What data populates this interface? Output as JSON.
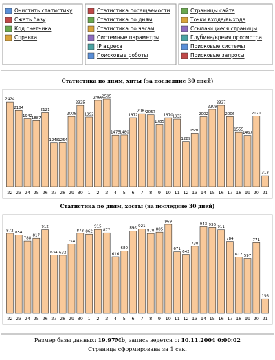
{
  "menu": [
    [
      "Очистить статистику",
      "Сжать базу",
      "Код счетчика",
      "Справка"
    ],
    [
      "Статистика посещаемости",
      "Статистика по дням",
      "Статистика по часам",
      "Системные параметры",
      "IP адреса",
      "Поисковые роботы"
    ],
    [
      "Страницы сайта",
      "Точки входа/выхода",
      "Ссылающиеся страницы",
      "Глубина/время просмотра",
      "Поисковые системы",
      "Поисковые запросы"
    ]
  ],
  "chart_data": [
    {
      "type": "bar",
      "title": "Статистика по дням, хиты (за последние 30 дней)",
      "categories": [
        "22",
        "23",
        "24",
        "25",
        "26",
        "27",
        "28",
        "29",
        "30",
        "1",
        "2",
        "3",
        "4",
        "5",
        "6",
        "7",
        "8",
        "9",
        "10",
        "11",
        "12",
        "13",
        "14",
        "15",
        "16",
        "17",
        "18",
        "19",
        "20",
        "21"
      ],
      "values": [
        2424,
        2184,
        1942,
        1887,
        2121,
        1248,
        1254,
        2008,
        2325,
        1992,
        2466,
        2505,
        1475,
        1480,
        1972,
        2087,
        2057,
        1785,
        1970,
        1932,
        1289,
        1530,
        2002,
        2209,
        2327,
        2006,
        1555,
        1467,
        2021,
        313
      ],
      "color": "#f9c99a"
    },
    {
      "type": "bar",
      "title": "Статистика по дням, хосты (за последние 30 дней)",
      "categories": [
        "22",
        "23",
        "24",
        "25",
        "26",
        "27",
        "28",
        "29",
        "30",
        "1",
        "2",
        "3",
        "4",
        "5",
        "6",
        "7",
        "8",
        "9",
        "10",
        "11",
        "12",
        "13",
        "14",
        "15",
        "16",
        "17",
        "18",
        "19",
        "20",
        "21"
      ],
      "values": [
        872,
        854,
        788,
        817,
        912,
        634,
        632,
        754,
        873,
        862,
        915,
        877,
        616,
        680,
        896,
        921,
        870,
        885,
        969,
        671,
        642,
        730,
        943,
        936,
        911,
        784,
        612,
        597,
        771,
        156
      ],
      "color": "#f9c99a"
    }
  ],
  "footer": {
    "line1": [
      "Размер базы данных: ",
      "19.97Mb",
      ", запись ведется с: ",
      "10.11.2004 0:00:02"
    ],
    "line2": "Страница сформирована за  1 сек."
  }
}
